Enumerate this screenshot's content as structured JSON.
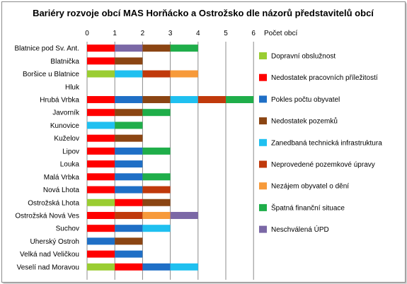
{
  "chart_data": {
    "type": "bar",
    "orientation": "horizontal",
    "stacked": true,
    "title": "Bariéry rozvoje obcí MAS Horňácko a Ostrožsko dle názorů představitelů obcí",
    "xlabel": "Počet obcí",
    "xlim": [
      0,
      6
    ],
    "xticks": [
      "0",
      "1",
      "2",
      "3",
      "4",
      "5",
      "6"
    ],
    "x_axis_position": "top",
    "grid": true,
    "legend_position": "right",
    "categories": [
      "Blatnice pod Sv. Ant.",
      "Blatnička",
      "Boršice u Blatnice",
      "Hluk",
      "Hrubá Vrbka",
      "Javorník",
      "Kunovice",
      "Kuželov",
      "Lipov",
      "Louka",
      "Malá Vrbka",
      "Nová Lhota",
      "Ostrožská Lhota",
      "Ostrožská Nová Ves",
      "Suchov",
      "Uherský Ostroh",
      "Velká nad Veličkou",
      "Veselí nad Moravou"
    ],
    "series": [
      {
        "name": "Dopravní obslužnost",
        "color": "#9acd32",
        "values": [
          0,
          0,
          1,
          0,
          0,
          0,
          0,
          0,
          0,
          0,
          0,
          0,
          1,
          0,
          0,
          0,
          0,
          1
        ]
      },
      {
        "name": "Nedostatek pracovních příležitostí",
        "color": "#ff0000",
        "values": [
          1,
          1,
          0,
          0,
          1,
          1,
          0,
          1,
          1,
          1,
          1,
          1,
          1,
          1,
          1,
          0,
          1,
          1
        ]
      },
      {
        "name": "Pokles počtu obyvatel",
        "color": "#1f6fc6",
        "values": [
          0,
          0,
          0,
          0,
          1,
          0,
          0,
          0,
          1,
          1,
          1,
          1,
          0,
          0,
          1,
          1,
          1,
          1
        ]
      },
      {
        "name": "Nedostatek pozemků",
        "color": "#8b4513",
        "values": [
          1,
          1,
          0,
          0,
          1,
          1,
          0,
          1,
          0,
          0,
          0,
          0,
          1,
          0,
          0,
          1,
          0,
          0
        ]
      },
      {
        "name": "Zanedbaná technická infrastruktura",
        "color": "#1fc0f0",
        "values": [
          0,
          0,
          1,
          0,
          1,
          0,
          1,
          0,
          0,
          0,
          0,
          0,
          0,
          0,
          1,
          0,
          0,
          1
        ]
      },
      {
        "name": "Neprovedené pozemkové úpravy",
        "color": "#c0390b",
        "values": [
          0,
          0,
          1,
          0,
          1,
          0,
          0,
          0,
          0,
          0,
          0,
          1,
          0,
          1,
          0,
          0,
          0,
          0
        ]
      },
      {
        "name": "Nezájem obyvatel o dění",
        "color": "#f79a3a",
        "values": [
          0,
          0,
          1,
          0,
          0,
          0,
          0,
          0,
          0,
          0,
          0,
          0,
          0,
          1,
          0,
          0,
          0,
          0
        ]
      },
      {
        "name": "Špatná finanční situace",
        "color": "#1fae4a",
        "values": [
          1,
          0,
          0,
          0,
          1,
          1,
          1,
          0,
          1,
          0,
          1,
          0,
          0,
          0,
          0,
          0,
          0,
          0
        ]
      },
      {
        "name": "Neschválená ÚPD",
        "color": "#7b68a6",
        "values": [
          1,
          0,
          0,
          0,
          0,
          0,
          0,
          0,
          0,
          0,
          0,
          0,
          0,
          1,
          0,
          0,
          0,
          0
        ]
      }
    ],
    "segment_order": [
      [
        1,
        8,
        3,
        7
      ],
      [
        1,
        3
      ],
      [
        0,
        4,
        5,
        6
      ],
      [],
      [
        1,
        2,
        3,
        4,
        5,
        7
      ],
      [
        1,
        3,
        7
      ],
      [
        4,
        7
      ],
      [
        1,
        3
      ],
      [
        1,
        2,
        7
      ],
      [
        1,
        2
      ],
      [
        1,
        2,
        7
      ],
      [
        1,
        2,
        5
      ],
      [
        0,
        1,
        3
      ],
      [
        1,
        5,
        6,
        8
      ],
      [
        1,
        2,
        4
      ],
      [
        2,
        3
      ],
      [
        1,
        2
      ],
      [
        0,
        1,
        2,
        4
      ]
    ]
  }
}
